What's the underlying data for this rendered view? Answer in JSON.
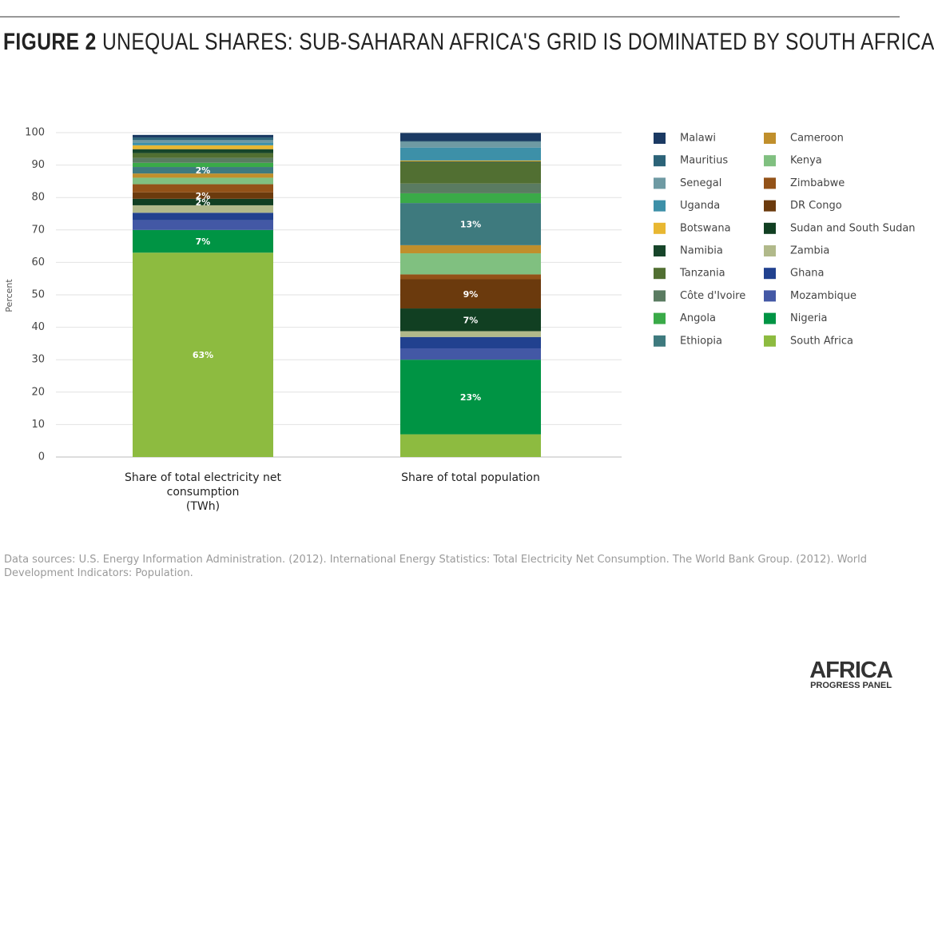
{
  "chart_data": {
    "type": "stacked_bar",
    "title_label": "FIGURE 2",
    "title": "UNEQUAL SHARES: SUB-SAHARAN AFRICA'S GRID IS DOMINATED BY SOUTH AFRICA",
    "y_label": "Percent",
    "categories": [
      "Share of total electricity net consumption\n(TWh)",
      "Share of total population"
    ],
    "ylim": [
      0,
      100
    ],
    "yticks": [
      0,
      10,
      20,
      30,
      40,
      50,
      60,
      70,
      80,
      90,
      100
    ],
    "grid": true,
    "series": [
      {
        "name": "South Africa",
        "color": "#8dbb40",
        "values": [
          63,
          7
        ],
        "value_labels": [
          "63%",
          null
        ]
      },
      {
        "name": "Nigeria",
        "color": "#009444",
        "values": [
          7,
          23
        ],
        "value_labels": [
          "7%",
          "23%"
        ]
      },
      {
        "name": "Mozambique",
        "color": "#4358a5",
        "values": [
          3,
          3.5
        ]
      },
      {
        "name": "Ghana",
        "color": "#21418f",
        "values": [
          2.3,
          3.5
        ]
      },
      {
        "name": "Zambia",
        "color": "#b1b98a",
        "values": [
          2.3,
          1.8
        ]
      },
      {
        "name": "Sudan and South Sudan",
        "color": "#113f22",
        "values": [
          2,
          7
        ],
        "value_labels": [
          "2%",
          "7%"
        ]
      },
      {
        "name": "DR Congo",
        "color": "#6b3a0d",
        "values": [
          2,
          9
        ],
        "value_labels": [
          "2%",
          "9%"
        ]
      },
      {
        "name": "Zimbabwe",
        "color": "#935218",
        "values": [
          2.5,
          1.5
        ]
      },
      {
        "name": "Kenya",
        "color": "#80c080",
        "values": [
          2,
          6.5
        ]
      },
      {
        "name": "Cameroon",
        "color": "#c08f2c",
        "values": [
          1.3,
          2.5
        ]
      },
      {
        "name": "Ethiopia",
        "color": "#3e7a7e",
        "values": [
          2,
          13
        ],
        "value_labels": [
          "2%",
          "13%"
        ]
      },
      {
        "name": "Angola",
        "color": "#3aaa48",
        "values": [
          1.3,
          3
        ]
      },
      {
        "name": "Côte d'Ivoire",
        "color": "#5a7b61",
        "values": [
          1.5,
          3
        ]
      },
      {
        "name": "Tanzania",
        "color": "#516f32",
        "values": [
          1.5,
          6.5
        ]
      },
      {
        "name": "Namibia",
        "color": "#17452a",
        "values": [
          1.2,
          0.3
        ]
      },
      {
        "name": "Botswana",
        "color": "#e8b731",
        "values": [
          1.2,
          0.3
        ]
      },
      {
        "name": "Uganda",
        "color": "#3d90a8",
        "values": [
          0.8,
          4
        ]
      },
      {
        "name": "Senegal",
        "color": "#6e9aa3",
        "values": [
          0.8,
          1.8
        ]
      },
      {
        "name": "Mauritius",
        "color": "#2c6378",
        "values": [
          0.8,
          0.2
        ]
      },
      {
        "name": "Malawi",
        "color": "#1b3a63",
        "values": [
          0.8,
          2.5
        ]
      }
    ],
    "source": "Data sources: U.S. Energy Information Administration. (2012). International Energy Statistics: Total Electricity Net Consumption. The World Bank Group. (2012). World Development Indicators: Population.",
    "logo": {
      "name": "AFRICA",
      "subtitle": "PROGRESS PANEL"
    }
  }
}
